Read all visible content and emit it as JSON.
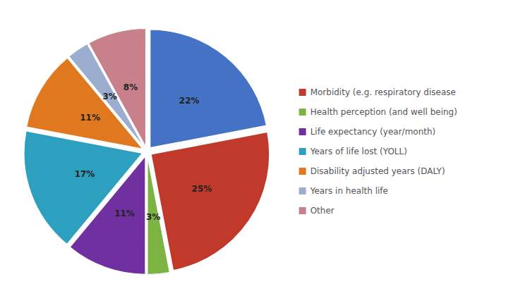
{
  "chart_data": {
    "type": "pie",
    "values": [
      22,
      25,
      3,
      11,
      17,
      11,
      3,
      8
    ],
    "value_labels": [
      "22%",
      "25%",
      "3%",
      "11%",
      "17%",
      "11%",
      "3%",
      "8%"
    ],
    "colors": [
      "#4472c4",
      "#c0392b",
      "#7cb342",
      "#7030a0",
      "#2da0c0",
      "#e07820",
      "#9baed0",
      "#c8808a"
    ],
    "data_labels": true,
    "legend": "right",
    "legend_labels": [
      "Morbidity (e.g. respiratory disease",
      "Health perception (and well being)",
      "Life expectancy (year/month)",
      "Years of life lost (YOLL)",
      "Disability adjusted years (DALY)",
      "Years in health life",
      "Other"
    ],
    "legend_colors": [
      "#c0392b",
      "#7cb342",
      "#7030a0",
      "#2da0c0",
      "#e07820",
      "#9baed0",
      "#c8808a"
    ]
  }
}
